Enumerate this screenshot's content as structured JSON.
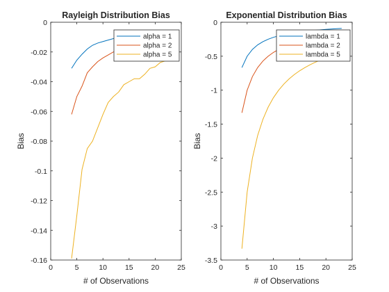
{
  "chart_data": [
    {
      "type": "line",
      "title": "Rayleigh Distribution Bias",
      "xlabel": "# of Observations",
      "ylabel": "Bias",
      "xlim": [
        0,
        25
      ],
      "ylim": [
        -0.16,
        0
      ],
      "xticks": [
        0,
        5,
        10,
        15,
        20,
        25
      ],
      "xtick_labels": [
        "0",
        "5",
        "10",
        "15",
        "20",
        "25"
      ],
      "yticks": [
        0,
        -0.02,
        -0.04,
        -0.06,
        -0.08,
        -0.1,
        -0.12,
        -0.14,
        -0.16
      ],
      "ytick_labels": [
        "0",
        "-0.02",
        "-0.04",
        "-0.06",
        "-0.08",
        "-0.1",
        "-0.12",
        "-0.14",
        "-0.16"
      ],
      "grid": false,
      "legend_position": "top-right",
      "x": [
        4,
        5,
        6,
        7,
        8,
        9,
        10,
        11,
        12,
        13,
        14,
        15,
        16,
        17,
        18,
        19,
        20,
        21,
        22,
        23
      ],
      "series": [
        {
          "name": "alpha = 1",
          "color": "#0072BD",
          "values": [
            -0.031,
            -0.0255,
            -0.0215,
            -0.018,
            -0.0155,
            -0.014,
            -0.013,
            -0.012,
            -0.011,
            -0.01,
            -0.0095,
            -0.009,
            -0.0085,
            -0.008,
            -0.0078,
            -0.0075,
            -0.0072,
            -0.007,
            -0.0068,
            -0.0066
          ]
        },
        {
          "name": "alpha = 2",
          "color": "#D95319",
          "values": [
            -0.062,
            -0.05,
            -0.043,
            -0.034,
            -0.03,
            -0.0265,
            -0.024,
            -0.022,
            -0.02,
            -0.019,
            -0.018,
            -0.017,
            -0.016,
            -0.015,
            -0.0145,
            -0.014,
            -0.0135,
            -0.013,
            -0.0125,
            -0.012
          ]
        },
        {
          "name": "alpha = 5",
          "color": "#EDB120",
          "values": [
            -0.159,
            -0.13,
            -0.099,
            -0.085,
            -0.08,
            -0.071,
            -0.062,
            -0.054,
            -0.05,
            -0.047,
            -0.042,
            -0.04,
            -0.038,
            -0.038,
            -0.035,
            -0.031,
            -0.03,
            -0.027,
            -0.026,
            -0.025
          ]
        }
      ]
    },
    {
      "type": "line",
      "title": "Exponential Distribution Bias",
      "xlabel": "# of Observations",
      "ylabel": "Bias",
      "xlim": [
        0,
        25
      ],
      "ylim": [
        -3.5,
        0
      ],
      "xticks": [
        0,
        5,
        10,
        15,
        20,
        25
      ],
      "xtick_labels": [
        "0",
        "5",
        "10",
        "15",
        "20",
        "25"
      ],
      "yticks": [
        0,
        -0.5,
        -1,
        -1.5,
        -2,
        -2.5,
        -3,
        -3.5
      ],
      "ytick_labels": [
        "0",
        "-0.5",
        "-1",
        "-1.5",
        "-2",
        "-2.5",
        "-3",
        "-3.5"
      ],
      "grid": false,
      "legend_position": "top-right",
      "x": [
        4,
        5,
        6,
        7,
        8,
        9,
        10,
        11,
        12,
        13,
        14,
        15,
        16,
        17,
        18,
        19,
        20,
        21,
        22,
        23
      ],
      "series": [
        {
          "name": "lambda = 1",
          "color": "#0072BD",
          "values": [
            -0.667,
            -0.5,
            -0.4,
            -0.333,
            -0.286,
            -0.25,
            -0.222,
            -0.2,
            -0.182,
            -0.167,
            -0.154,
            -0.143,
            -0.133,
            -0.125,
            -0.118,
            -0.111,
            -0.105,
            -0.1,
            -0.095,
            -0.091
          ]
        },
        {
          "name": "lambda = 2",
          "color": "#D95319",
          "values": [
            -1.333,
            -1.0,
            -0.8,
            -0.667,
            -0.571,
            -0.5,
            -0.444,
            -0.4,
            -0.364,
            -0.333,
            -0.308,
            -0.286,
            -0.267,
            -0.25,
            -0.235,
            -0.222,
            -0.211,
            -0.2,
            -0.19,
            -0.182
          ]
        },
        {
          "name": "lambda = 5",
          "color": "#EDB120",
          "values": [
            -3.333,
            -2.5,
            -2.0,
            -1.667,
            -1.429,
            -1.25,
            -1.111,
            -1.0,
            -0.909,
            -0.833,
            -0.769,
            -0.714,
            -0.667,
            -0.625,
            -0.588,
            -0.556,
            -0.526,
            -0.5,
            -0.476,
            -0.455
          ]
        }
      ]
    }
  ]
}
